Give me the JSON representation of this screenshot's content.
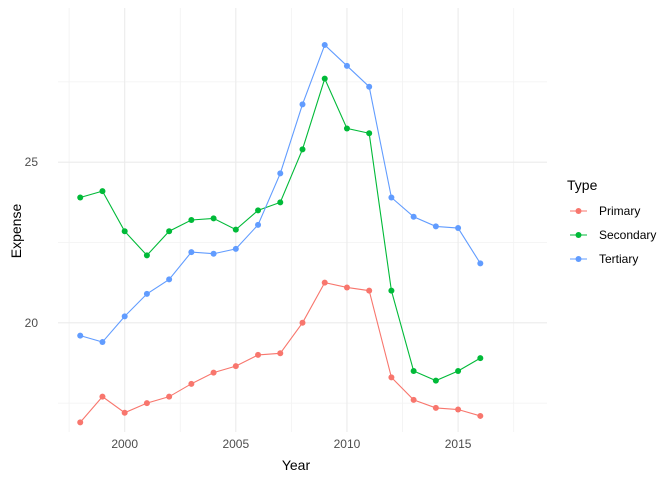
{
  "chart_data": {
    "type": "line",
    "title": "",
    "xlabel": "Year",
    "ylabel": "Expense",
    "xlim": [
      1997,
      2019
    ],
    "ylim": [
      16.6,
      29.8
    ],
    "x_ticks": [
      2000,
      2005,
      2010,
      2015
    ],
    "x_tick_labels": [
      "2000",
      "2005",
      "2010",
      "2015"
    ],
    "y_ticks": [
      20,
      25
    ],
    "y_tick_labels": [
      "20",
      "25"
    ],
    "grid": true,
    "legend": {
      "title": "Type",
      "placement": "right"
    },
    "x": [
      1998,
      1999,
      2000,
      2001,
      2002,
      2003,
      2004,
      2005,
      2006,
      2007,
      2008,
      2009,
      2010,
      2011,
      2012,
      2013,
      2014,
      2015,
      2016
    ],
    "series": [
      {
        "name": "Primary",
        "color": "#F8766D",
        "values": [
          16.9,
          17.7,
          17.2,
          17.5,
          17.7,
          18.1,
          18.45,
          18.65,
          19.0,
          19.05,
          20.0,
          21.25,
          21.1,
          21.0,
          18.3,
          17.6,
          17.35,
          17.3,
          17.1
        ]
      },
      {
        "name": "Secondary",
        "color": "#00BA38",
        "values": [
          23.9,
          24.1,
          22.85,
          22.1,
          22.85,
          23.2,
          23.25,
          22.9,
          23.5,
          23.75,
          25.4,
          27.6,
          26.05,
          25.9,
          21.0,
          18.5,
          18.2,
          18.5,
          18.9
        ]
      },
      {
        "name": "Tertiary",
        "color": "#619CFF",
        "values": [
          19.6,
          19.4,
          20.2,
          20.9,
          21.35,
          22.2,
          22.15,
          22.3,
          23.05,
          24.65,
          26.8,
          28.65,
          28.0,
          27.35,
          23.9,
          23.3,
          23.0,
          22.95,
          21.85
        ]
      }
    ]
  }
}
